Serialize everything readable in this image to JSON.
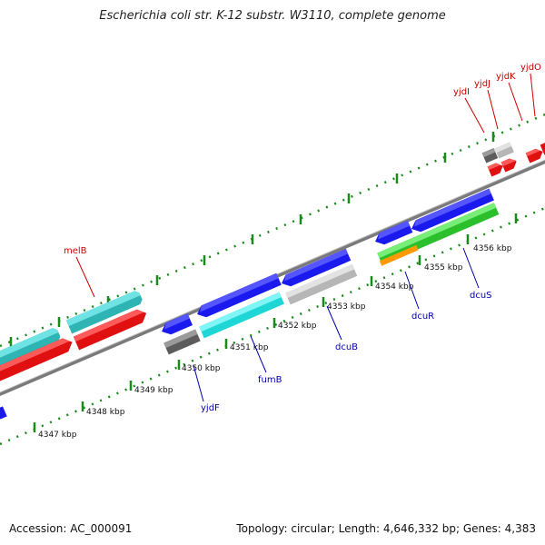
{
  "title": "Escherichia coli str. K-12 substr. W3110, complete genome",
  "footer": {
    "accession": "Accession: AC_000091",
    "summary": "Topology: circular; Length: 4,646,332 bp; Genes: 4,383"
  },
  "scale_labels": [
    "4347 kbp",
    "4348 kbp",
    "4349 kbp",
    "4350 kbp",
    "4351 kbp",
    "4352 kbp",
    "4353 kbp",
    "4354 kbp",
    "4355 kbp",
    "4356 kbp"
  ],
  "gene_labels": [
    {
      "text": "melB",
      "color": "#cc0000"
    },
    {
      "text": "yjdF",
      "color": "#0000aa"
    },
    {
      "text": "fumB",
      "color": "#0000aa"
    },
    {
      "text": "dcuB",
      "color": "#0000aa"
    },
    {
      "text": "dcuR",
      "color": "#0000aa"
    },
    {
      "text": "dcuS",
      "color": "#0000aa"
    },
    {
      "text": "yjdI",
      "color": "#cc0000"
    },
    {
      "text": "yjdJ",
      "color": "#cc0000"
    },
    {
      "text": "yjdK",
      "color": "#cc0000"
    },
    {
      "text": "yjdO",
      "color": "#cc0000"
    }
  ],
  "colors": {
    "blue": "#1a1aee",
    "cyan": "#22dddd",
    "teal": "#33c9c9",
    "red": "#ee1111",
    "gray": "#c4c4c4",
    "darkgray": "#6e6e6e",
    "green": "#33cc33",
    "orange": "#ff9900",
    "backbone": "#8a8a8a",
    "tick": "#1a8a1a"
  }
}
